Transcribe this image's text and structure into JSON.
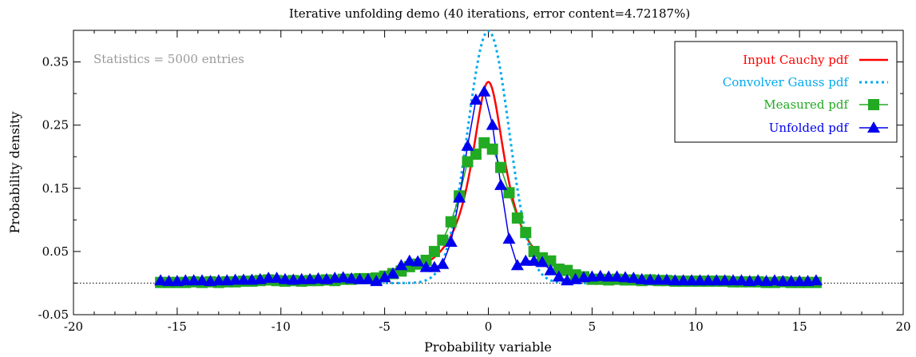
{
  "chart_data": {
    "type": "line",
    "title": "Iterative unfolding demo (40 iterations, error content=4.72187%)",
    "xlabel": "Probability variable",
    "ylabel": "Probability density",
    "xlim": [
      -20,
      20
    ],
    "ylim": [
      -0.05,
      0.4
    ],
    "x_ticks": [
      -20,
      -15,
      -10,
      -5,
      0,
      5,
      10,
      15,
      20
    ],
    "x_tick_labels": [
      "-20",
      "-15",
      "-10",
      "-5",
      "0",
      "5",
      "10",
      "15",
      "20"
    ],
    "y_ticks": [
      -0.05,
      0.05,
      0.15,
      0.25,
      0.35
    ],
    "y_tick_labels": [
      "-0.05",
      "0.05",
      "0.15",
      "0.25",
      "0.35"
    ],
    "zero_line": 0,
    "annotation": "Statistics = 5000 entries",
    "legend_position": "top-right",
    "series": [
      {
        "name": "Input Cauchy pdf",
        "style": "solid-line",
        "color": "#ff0000",
        "kind": "cauchy",
        "location": 0,
        "scale": 1,
        "range": [
          -16,
          16
        ]
      },
      {
        "name": "Convolver Gauss pdf",
        "style": "dotted-line",
        "color": "#00aaee",
        "kind": "gauss",
        "mean": 0,
        "sigma": 1,
        "range": [
          -16,
          16
        ]
      },
      {
        "name": "Measured pdf",
        "style": "line-square",
        "color": "#22aa22",
        "x": [
          -15.8,
          -15.4,
          -15.0,
          -14.6,
          -14.2,
          -13.8,
          -13.4,
          -13.0,
          -12.6,
          -12.2,
          -11.8,
          -11.4,
          -11.0,
          -10.6,
          -10.2,
          -9.8,
          -9.4,
          -9.0,
          -8.6,
          -8.2,
          -7.8,
          -7.4,
          -7.0,
          -6.6,
          -6.2,
          -5.8,
          -5.4,
          -5.0,
          -4.6,
          -4.2,
          -3.8,
          -3.4,
          -3.0,
          -2.6,
          -2.2,
          -1.8,
          -1.4,
          -1.0,
          -0.6,
          -0.2,
          0.2,
          0.6,
          1.0,
          1.4,
          1.8,
          2.2,
          2.6,
          3.0,
          3.4,
          3.8,
          4.2,
          4.6,
          5.0,
          5.4,
          5.8,
          6.2,
          6.6,
          7.0,
          7.4,
          7.8,
          8.2,
          8.6,
          9.0,
          9.4,
          9.8,
          10.2,
          10.6,
          11.0,
          11.4,
          11.8,
          12.2,
          12.6,
          13.0,
          13.4,
          13.8,
          14.2,
          14.6,
          15.0,
          15.4,
          15.8
        ],
        "y": [
          0.001,
          0.001,
          0.001,
          0.001,
          0.002,
          0.001,
          0.002,
          0.001,
          0.002,
          0.002,
          0.003,
          0.003,
          0.004,
          0.005,
          0.004,
          0.003,
          0.004,
          0.003,
          0.004,
          0.004,
          0.005,
          0.004,
          0.006,
          0.006,
          0.007,
          0.007,
          0.008,
          0.011,
          0.015,
          0.019,
          0.026,
          0.03,
          0.036,
          0.05,
          0.068,
          0.097,
          0.138,
          0.192,
          0.204,
          0.222,
          0.212,
          0.183,
          0.143,
          0.103,
          0.08,
          0.05,
          0.04,
          0.035,
          0.022,
          0.02,
          0.013,
          0.01,
          0.006,
          0.006,
          0.005,
          0.006,
          0.005,
          0.005,
          0.004,
          0.005,
          0.004,
          0.004,
          0.003,
          0.003,
          0.003,
          0.003,
          0.003,
          0.003,
          0.003,
          0.002,
          0.002,
          0.002,
          0.002,
          0.001,
          0.001,
          0.002,
          0.001,
          0.001,
          0.001,
          0.001
        ]
      },
      {
        "name": "Unfolded pdf",
        "style": "line-triangle",
        "color": "#0000ee",
        "x": [
          -15.8,
          -15.4,
          -15.0,
          -14.6,
          -14.2,
          -13.8,
          -13.4,
          -13.0,
          -12.6,
          -12.2,
          -11.8,
          -11.4,
          -11.0,
          -10.6,
          -10.2,
          -9.8,
          -9.4,
          -9.0,
          -8.6,
          -8.2,
          -7.8,
          -7.4,
          -7.0,
          -6.6,
          -6.2,
          -5.8,
          -5.4,
          -5.0,
          -4.6,
          -4.2,
          -3.8,
          -3.4,
          -3.0,
          -2.6,
          -2.2,
          -1.8,
          -1.4,
          -1.0,
          -0.6,
          -0.2,
          0.2,
          0.6,
          1.0,
          1.4,
          1.8,
          2.2,
          2.6,
          3.0,
          3.4,
          3.8,
          4.2,
          4.6,
          5.0,
          5.4,
          5.8,
          6.2,
          6.6,
          7.0,
          7.4,
          7.8,
          8.2,
          8.6,
          9.0,
          9.4,
          9.8,
          10.2,
          10.6,
          11.0,
          11.4,
          11.8,
          12.2,
          12.6,
          13.0,
          13.4,
          13.8,
          14.2,
          14.6,
          15.0,
          15.4,
          15.8
        ],
        "y": [
          0.004,
          0.003,
          0.003,
          0.004,
          0.004,
          0.004,
          0.003,
          0.004,
          0.004,
          0.005,
          0.005,
          0.005,
          0.006,
          0.008,
          0.008,
          0.006,
          0.005,
          0.006,
          0.006,
          0.007,
          0.006,
          0.008,
          0.009,
          0.007,
          0.006,
          0.006,
          0.003,
          0.009,
          0.015,
          0.028,
          0.035,
          0.034,
          0.025,
          0.025,
          0.03,
          0.065,
          0.135,
          0.217,
          0.29,
          0.303,
          0.25,
          0.155,
          0.07,
          0.028,
          0.035,
          0.035,
          0.033,
          0.02,
          0.01,
          0.004,
          0.006,
          0.009,
          0.01,
          0.011,
          0.01,
          0.01,
          0.009,
          0.008,
          0.006,
          0.005,
          0.005,
          0.005,
          0.004,
          0.004,
          0.004,
          0.004,
          0.004,
          0.004,
          0.004,
          0.004,
          0.004,
          0.003,
          0.004,
          0.003,
          0.004,
          0.003,
          0.003,
          0.003,
          0.003,
          0.004
        ]
      }
    ]
  }
}
